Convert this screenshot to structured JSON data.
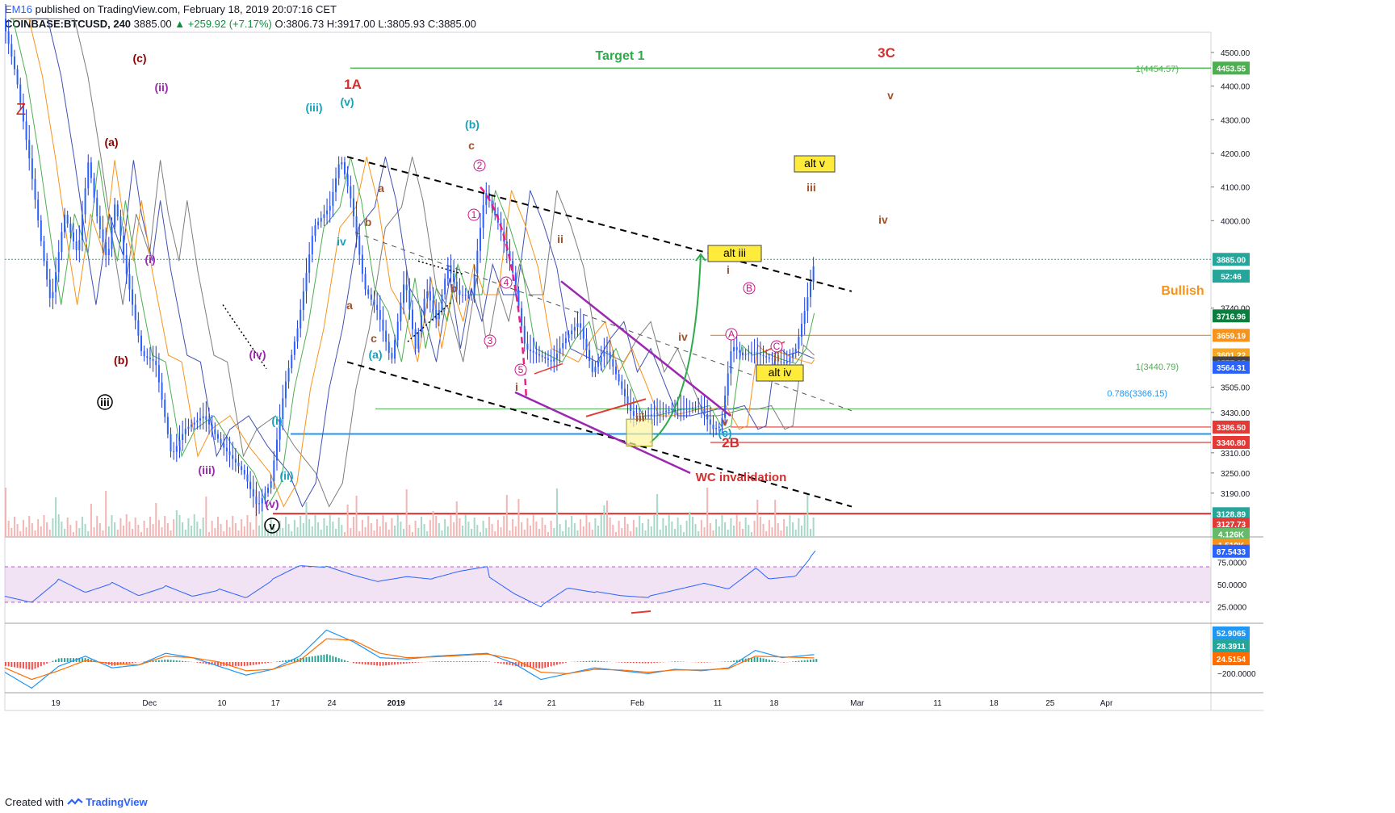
{
  "header": {
    "user": "EM16",
    "published": "published on TradingView.com, February 18, 2019 20:07:16 CET",
    "symbol": "COINBASE:BTCUSD, 240",
    "last": "3885.00",
    "change": "+259.92 (+7.17%)",
    "ohlc": "O:3806.73 H:3917.00 L:3805.93 C:3885.00"
  },
  "footer": {
    "created_with": "Created with",
    "brand": "TradingView"
  },
  "colors": {
    "up": "#26a69a",
    "down": "#ef5350",
    "bg": "#ffffff",
    "grid": "#e0e3eb"
  },
  "chart_data": {
    "type": "candlestick",
    "symbol": "COINBASE:BTCUSD",
    "timeframe": "240",
    "y_range": [
      3060,
      4560
    ],
    "x_tick_labels": [
      "19",
      "Dec",
      "10",
      "17",
      "24",
      "2019",
      "14",
      "21",
      "Feb",
      "11",
      "18",
      "Mar",
      "11",
      "18",
      "25",
      "Apr"
    ],
    "y_tick_labels": [
      "4500.00",
      "4400.00",
      "4300.00",
      "4200.00",
      "4100.00",
      "4000.00",
      "3740.00",
      "3505.00",
      "3430.00",
      "3310.00",
      "3250.00",
      "3190.00"
    ],
    "price_path": [
      [
        0,
        4600
      ],
      [
        0.5,
        4430
      ],
      [
        1,
        4180
      ],
      [
        1.5,
        3900
      ],
      [
        1.8,
        3750
      ],
      [
        2.3,
        4020
      ],
      [
        2.8,
        3900
      ],
      [
        3.2,
        4180
      ],
      [
        3.5,
        4020
      ],
      [
        3.9,
        3880
      ],
      [
        4.2,
        4060
      ],
      [
        4.6,
        3850
      ],
      [
        5.2,
        3600
      ],
      [
        5.7,
        3580
      ],
      [
        6.3,
        3300
      ],
      [
        6.8,
        3380
      ],
      [
        7.5,
        3420
      ],
      [
        8.2,
        3330
      ],
      [
        9.0,
        3250
      ],
      [
        9.5,
        3150
      ],
      [
        10.0,
        3220
      ],
      [
        10.5,
        3500
      ],
      [
        11.0,
        3680
      ],
      [
        11.6,
        3980
      ],
      [
        12.2,
        4040
      ],
      [
        12.6,
        4190
      ],
      [
        13.0,
        4060
      ],
      [
        13.5,
        3800
      ],
      [
        14.0,
        3730
      ],
      [
        14.5,
        3580
      ],
      [
        15.0,
        3830
      ],
      [
        15.4,
        3620
      ],
      [
        15.8,
        3800
      ],
      [
        16.2,
        3700
      ],
      [
        16.6,
        3870
      ],
      [
        17.0,
        3780
      ],
      [
        17.5,
        3780
      ],
      [
        18.0,
        4090
      ],
      [
        18.5,
        3990
      ],
      [
        19.0,
        3860
      ],
      [
        19.5,
        3620
      ],
      [
        20.0,
        3600
      ],
      [
        20.5,
        3580
      ],
      [
        21.0,
        3650
      ],
      [
        21.5,
        3700
      ],
      [
        22.0,
        3550
      ],
      [
        22.5,
        3620
      ],
      [
        23.0,
        3520
      ],
      [
        23.5,
        3420
      ],
      [
        24.0,
        3420
      ],
      [
        24.5,
        3430
      ],
      [
        25.0,
        3440
      ],
      [
        25.5,
        3440
      ],
      [
        26.0,
        3450
      ],
      [
        26.5,
        3380
      ],
      [
        26.8,
        3390
      ],
      [
        27.2,
        3630
      ],
      [
        27.6,
        3600
      ],
      [
        28.0,
        3610
      ],
      [
        28.6,
        3590
      ],
      [
        29.2,
        3575
      ],
      [
        29.6,
        3620
      ],
      [
        30.0,
        3760
      ],
      [
        30.3,
        3885
      ]
    ],
    "x_last": 30.3,
    "x_end": 45,
    "price_labels": [
      {
        "value": "4453.55",
        "price": 4453.55,
        "color": "#4caf50"
      },
      {
        "value": "3885.00",
        "price": 3885,
        "color": "#26a69a"
      },
      {
        "value": "52:46",
        "price": 3835,
        "color": "#26a69a"
      },
      {
        "value": "3716.96",
        "price": 3716.96,
        "color": "#0b7d3e"
      },
      {
        "value": "3659.19",
        "price": 3659.19,
        "color": "#f7931a"
      },
      {
        "value": "3601.22",
        "price": 3601.22,
        "color": "#f5a623"
      },
      {
        "value": "3577.25",
        "price": 3577.25,
        "color": "#424242"
      },
      {
        "value": "3564.31",
        "price": 3564.31,
        "color": "#2962ff"
      },
      {
        "value": "3386.50",
        "price": 3386.5,
        "color": "#e53935"
      },
      {
        "value": "3340.80",
        "price": 3340.8,
        "color": "#e53935"
      },
      {
        "value": "3128.89",
        "price": 3128.89,
        "color": "#26a69a"
      },
      {
        "value": "3127.73",
        "price": 3098,
        "color": "#e53935"
      },
      {
        "value": "4.126K",
        "price": 3068,
        "color": "#66bb6a"
      },
      {
        "value": "1.519K",
        "price": 3036,
        "color": "#f7931a"
      }
    ],
    "annotations": [
      {
        "text": "Target 1",
        "color": "#2eaa4a"
      },
      {
        "text": "3C",
        "color": "#d32f2f"
      },
      {
        "text": "1A",
        "color": "#d32f2f"
      },
      {
        "text": "2B",
        "color": "#d32f2f"
      },
      {
        "text": "WC invalidation",
        "color": "#d32f2f"
      },
      {
        "text": "Bullish",
        "color": "#f7931a"
      },
      {
        "text": "1(4454.57)",
        "color": "#4caf50"
      },
      {
        "text": "1(3440.79)",
        "color": "#4caf50"
      },
      {
        "text": "0.786(3366.15)",
        "color": "#2196f3"
      },
      {
        "text": "alt v",
        "color": "#000000"
      },
      {
        "text": "alt iii",
        "color": "#000000"
      },
      {
        "text": "alt iv",
        "color": "#000000"
      },
      {
        "text": "Z",
        "color": "#c62828"
      },
      {
        "text": "(a)",
        "color": "#8b0000"
      },
      {
        "text": "(b)",
        "color": "#8b0000"
      },
      {
        "text": "(c)",
        "color": "#8b0000"
      },
      {
        "text": "(i)",
        "color": "#9c27b0"
      },
      {
        "text": "(ii)",
        "color": "#9c27b0"
      },
      {
        "text": "(iii)",
        "color": "#9c27b0"
      },
      {
        "text": "(iv)",
        "color": "#9c27b0"
      },
      {
        "text": "(v)",
        "color": "#9c27b0"
      },
      {
        "text": "(i)",
        "color": "#17a2b8"
      },
      {
        "text": "(ii)",
        "color": "#17a2b8"
      },
      {
        "text": "(iii)",
        "color": "#17a2b8"
      },
      {
        "text": "(v)",
        "color": "#17a2b8"
      },
      {
        "text": "(a)",
        "color": "#17a2b8"
      },
      {
        "text": "(b)",
        "color": "#17a2b8"
      },
      {
        "text": "(c)",
        "color": "#17a2b8"
      },
      {
        "text": "iv",
        "color": "#17a2b8"
      },
      {
        "text": "a",
        "color": "#a0522d"
      },
      {
        "text": "b",
        "color": "#a0522d"
      },
      {
        "text": "c",
        "color": "#a0522d"
      },
      {
        "text": "a",
        "color": "#a0522d"
      },
      {
        "text": "b",
        "color": "#a0522d"
      },
      {
        "text": "c",
        "color": "#a0522d"
      },
      {
        "text": "ii",
        "color": "#a0522d"
      },
      {
        "text": "i",
        "color": "#a0522d"
      },
      {
        "text": "iii",
        "color": "#a0522d"
      },
      {
        "text": "iv",
        "color": "#a0522d"
      },
      {
        "text": "v",
        "color": "#a0522d"
      },
      {
        "text": "i",
        "color": "#a0522d"
      },
      {
        "text": "ii",
        "color": "#a0522d"
      },
      {
        "text": "iii",
        "color": "#a0522d"
      },
      {
        "text": "iv",
        "color": "#a0522d"
      },
      {
        "text": "v",
        "color": "#a0522d"
      },
      {
        "text": "iii",
        "color": "#000000"
      },
      {
        "text": "v",
        "color": "#000000"
      },
      {
        "text": "1",
        "color": "#c71585"
      },
      {
        "text": "2",
        "color": "#c71585"
      },
      {
        "text": "3",
        "color": "#c71585"
      },
      {
        "text": "4",
        "color": "#c71585"
      },
      {
        "text": "5",
        "color": "#c71585"
      },
      {
        "text": "A",
        "color": "#c71585"
      },
      {
        "text": "B",
        "color": "#c71585"
      },
      {
        "text": "C",
        "color": "#c71585"
      }
    ],
    "rsi": {
      "labels": [
        "75.0000",
        "50.0000",
        "25.0000"
      ],
      "current": "87.5433",
      "band": [
        30,
        70
      ],
      "values": [
        [
          0,
          42
        ],
        [
          1,
          35
        ],
        [
          2,
          60
        ],
        [
          3,
          45
        ],
        [
          4,
          55
        ],
        [
          5,
          40
        ],
        [
          6,
          50
        ],
        [
          7,
          38
        ],
        [
          8,
          45
        ],
        [
          9,
          35
        ],
        [
          10,
          55
        ],
        [
          11,
          70
        ],
        [
          12,
          68
        ],
        [
          13,
          58
        ],
        [
          14,
          50
        ],
        [
          15,
          55
        ],
        [
          16,
          52
        ],
        [
          17,
          60
        ],
        [
          18,
          65
        ],
        [
          19,
          45
        ],
        [
          20,
          30
        ],
        [
          21,
          50
        ],
        [
          22,
          45
        ],
        [
          23,
          40
        ],
        [
          24,
          38
        ],
        [
          25,
          45
        ],
        [
          26,
          52
        ],
        [
          27,
          45
        ],
        [
          28,
          68
        ],
        [
          28.5,
          55
        ],
        [
          29.5,
          58
        ],
        [
          30.3,
          87.5
        ]
      ]
    },
    "macd": {
      "labels": [
        "52.9065",
        "28.3911",
        "24.5154",
        "−200.0000"
      ],
      "macd_values": [
        [
          0,
          -70
        ],
        [
          1,
          -180
        ],
        [
          2,
          -30
        ],
        [
          3,
          40
        ],
        [
          4,
          -40
        ],
        [
          5,
          -20
        ],
        [
          6,
          60
        ],
        [
          7,
          30
        ],
        [
          8,
          -30
        ],
        [
          9,
          -90
        ],
        [
          10,
          -50
        ],
        [
          11,
          40
        ],
        [
          12,
          220
        ],
        [
          13,
          140
        ],
        [
          14,
          30
        ],
        [
          15,
          20
        ],
        [
          16,
          40
        ],
        [
          17,
          50
        ],
        [
          18,
          60
        ],
        [
          19,
          -10
        ],
        [
          20,
          -120
        ],
        [
          21,
          -80
        ],
        [
          22,
          -40
        ],
        [
          23,
          -60
        ],
        [
          24,
          -80
        ],
        [
          25,
          -50
        ],
        [
          26,
          -60
        ],
        [
          27,
          -40
        ],
        [
          28,
          80
        ],
        [
          29,
          30
        ],
        [
          30.3,
          53
        ]
      ],
      "signal_values": [
        [
          0,
          -40
        ],
        [
          1,
          -120
        ],
        [
          2,
          -60
        ],
        [
          3,
          10
        ],
        [
          4,
          -10
        ],
        [
          5,
          -20
        ],
        [
          6,
          40
        ],
        [
          7,
          30
        ],
        [
          8,
          0
        ],
        [
          9,
          -60
        ],
        [
          10,
          -50
        ],
        [
          11,
          10
        ],
        [
          12,
          160
        ],
        [
          13,
          150
        ],
        [
          14,
          60
        ],
        [
          15,
          30
        ],
        [
          16,
          35
        ],
        [
          17,
          45
        ],
        [
          18,
          55
        ],
        [
          19,
          20
        ],
        [
          20,
          -70
        ],
        [
          21,
          -80
        ],
        [
          22,
          -50
        ],
        [
          23,
          -55
        ],
        [
          24,
          -70
        ],
        [
          25,
          -55
        ],
        [
          26,
          -55
        ],
        [
          27,
          -45
        ],
        [
          28,
          40
        ],
        [
          29,
          35
        ],
        [
          30.3,
          28
        ]
      ]
    }
  }
}
